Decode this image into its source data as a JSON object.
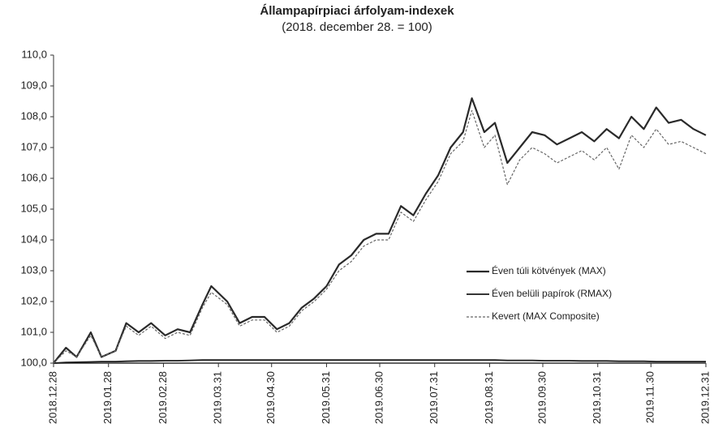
{
  "chart_data": {
    "type": "line",
    "title": "Állampapírpiaci árfolyam-indexek",
    "subtitle": "(2018. december 28. = 100)",
    "x": [
      "2018.12.28",
      "2019.01.04",
      "2019.01.10",
      "2019.01.18",
      "2019.01.24",
      "2019.02.01",
      "2019.02.07",
      "2019.02.14",
      "2019.02.21",
      "2019.03.01",
      "2019.03.08",
      "2019.03.15",
      "2019.03.22",
      "2019.03.27",
      "2019.04.05",
      "2019.04.12",
      "2019.04.19",
      "2019.04.26",
      "2019.05.03",
      "2019.05.10",
      "2019.05.17",
      "2019.05.24",
      "2019.05.31",
      "2019.06.07",
      "2019.06.14",
      "2019.06.21",
      "2019.06.28",
      "2019.07.05",
      "2019.07.12",
      "2019.07.19",
      "2019.07.26",
      "2019.08.02",
      "2019.08.09",
      "2019.08.16",
      "2019.08.21",
      "2019.08.28",
      "2019.09.03",
      "2019.09.10",
      "2019.09.17",
      "2019.09.24",
      "2019.10.01",
      "2019.10.08",
      "2019.10.15",
      "2019.10.22",
      "2019.10.29",
      "2019.11.05",
      "2019.11.12",
      "2019.11.19",
      "2019.11.26",
      "2019.12.03",
      "2019.12.10",
      "2019.12.17",
      "2019.12.24",
      "2019.12.31"
    ],
    "series": [
      {
        "name": "Éven túli kötvények (MAX)",
        "color": "#2a2a2a",
        "width": 2.2,
        "dash": false,
        "values": [
          100.0,
          100.5,
          100.2,
          101.0,
          100.2,
          100.4,
          101.3,
          101.0,
          101.3,
          100.9,
          101.1,
          101.0,
          101.9,
          102.5,
          102.0,
          101.3,
          101.5,
          101.5,
          101.1,
          101.3,
          101.8,
          102.1,
          102.5,
          103.2,
          103.5,
          104.0,
          104.2,
          104.2,
          105.1,
          104.8,
          105.5,
          106.1,
          107.0,
          107.5,
          108.6,
          107.5,
          107.8,
          106.5,
          107.0,
          107.5,
          107.4,
          107.1,
          107.3,
          107.5,
          107.2,
          107.6,
          107.3,
          108.0,
          107.6,
          108.3,
          107.8,
          107.9,
          107.6,
          107.4
        ]
      },
      {
        "name": "Éven belüli papírok (RMAX)",
        "color": "#1a1a1a",
        "width": 1.8,
        "dash": false,
        "values": [
          100.0,
          100.02,
          100.03,
          100.04,
          100.05,
          100.05,
          100.06,
          100.07,
          100.07,
          100.08,
          100.08,
          100.09,
          100.1,
          100.1,
          100.1,
          100.1,
          100.1,
          100.1,
          100.1,
          100.1,
          100.1,
          100.1,
          100.1,
          100.1,
          100.1,
          100.1,
          100.1,
          100.1,
          100.1,
          100.1,
          100.1,
          100.1,
          100.1,
          100.1,
          100.1,
          100.1,
          100.1,
          100.09,
          100.09,
          100.09,
          100.08,
          100.08,
          100.08,
          100.07,
          100.07,
          100.07,
          100.06,
          100.06,
          100.06,
          100.05,
          100.05,
          100.05,
          100.05,
          100.05
        ]
      },
      {
        "name": "Kevert (MAX Composite)",
        "color": "#666666",
        "width": 1.2,
        "dash": true,
        "values": [
          100.0,
          100.4,
          100.2,
          100.9,
          100.2,
          100.4,
          101.2,
          100.9,
          101.2,
          100.8,
          101.0,
          100.9,
          101.8,
          102.3,
          101.9,
          101.2,
          101.4,
          101.4,
          101.0,
          101.2,
          101.7,
          102.0,
          102.4,
          103.0,
          103.3,
          103.8,
          104.0,
          104.0,
          104.9,
          104.6,
          105.3,
          105.9,
          106.8,
          107.2,
          108.2,
          107.0,
          107.4,
          105.8,
          106.6,
          107.0,
          106.8,
          106.5,
          106.7,
          106.9,
          106.6,
          107.0,
          106.3,
          107.4,
          107.0,
          107.6,
          107.1,
          107.2,
          107.0,
          106.8
        ]
      }
    ],
    "xlim": [
      "2018.12.28",
      "2019.12.31"
    ],
    "xticks": [
      "2018.12.28",
      "2019.01.28",
      "2019.02.28",
      "2019.03.31",
      "2019.04.30",
      "2019.05.31",
      "2019.06.30",
      "2019.07.31",
      "2019.08.31",
      "2019.09.30",
      "2019.10.31",
      "2019.11.30",
      "2019.12.31"
    ],
    "ylim": [
      100,
      110
    ],
    "yticks": [
      {
        "value": 100,
        "label": "100,0"
      },
      {
        "value": 101,
        "label": "101,0"
      },
      {
        "value": 102,
        "label": "102,0"
      },
      {
        "value": 103,
        "label": "103,0"
      },
      {
        "value": 104,
        "label": "104,0"
      },
      {
        "value": 105,
        "label": "105,0"
      },
      {
        "value": 106,
        "label": "106,0"
      },
      {
        "value": 107,
        "label": "107,0"
      },
      {
        "value": 108,
        "label": "108,0"
      },
      {
        "value": 109,
        "label": "109,0"
      },
      {
        "value": 110,
        "label": "110,0"
      }
    ],
    "grid": false,
    "legend": "right"
  }
}
